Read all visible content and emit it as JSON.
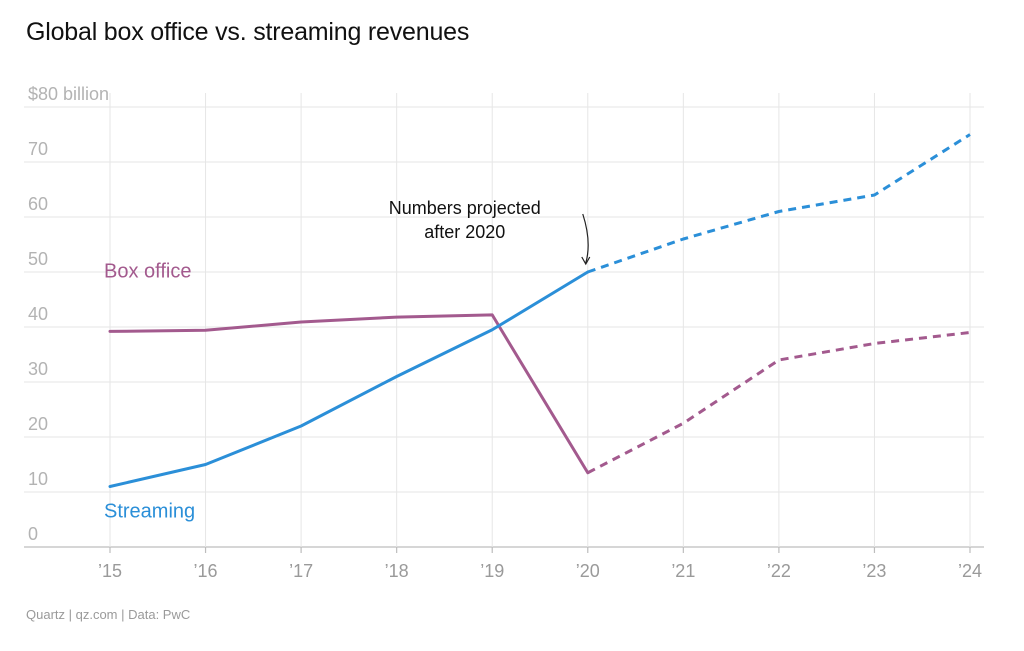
{
  "title": "Global box office vs. streaming revenues",
  "footer": "Quartz | qz.com | Data: PwC",
  "colors": {
    "box_office": "#a35a8e",
    "streaming": "#2b8fd8",
    "grid": "#e6e6e6",
    "axis": "#bdbdbd"
  },
  "chart_data": {
    "type": "line",
    "title": "Global box office vs. streaming revenues",
    "xlabel": "",
    "ylabel": "",
    "ylim": [
      0,
      80
    ],
    "y_ticks": [
      0,
      10,
      20,
      30,
      40,
      50,
      60,
      70,
      80
    ],
    "y_tick_labels": [
      "0",
      "10",
      "20",
      "30",
      "40",
      "50",
      "60",
      "70",
      "$80 billion"
    ],
    "x": [
      "’15",
      "’16",
      "’17",
      "’18",
      "’19",
      "’20",
      "’21",
      "’22",
      "’23",
      "’24"
    ],
    "projected_from_index": 5,
    "series": [
      {
        "name": "Box office",
        "label": "Box office",
        "color": "#a35a8e",
        "values": [
          39.2,
          39.4,
          40.9,
          41.8,
          42.2,
          13.5,
          22.5,
          34,
          37,
          39
        ]
      },
      {
        "name": "Streaming",
        "label": "Streaming",
        "color": "#2b8fd8",
        "values": [
          11,
          15,
          22,
          31,
          39.5,
          50,
          56,
          61,
          64,
          75
        ]
      }
    ],
    "annotation": {
      "lines": [
        "Numbers projected",
        "after 2020"
      ],
      "x_index": 5
    }
  }
}
